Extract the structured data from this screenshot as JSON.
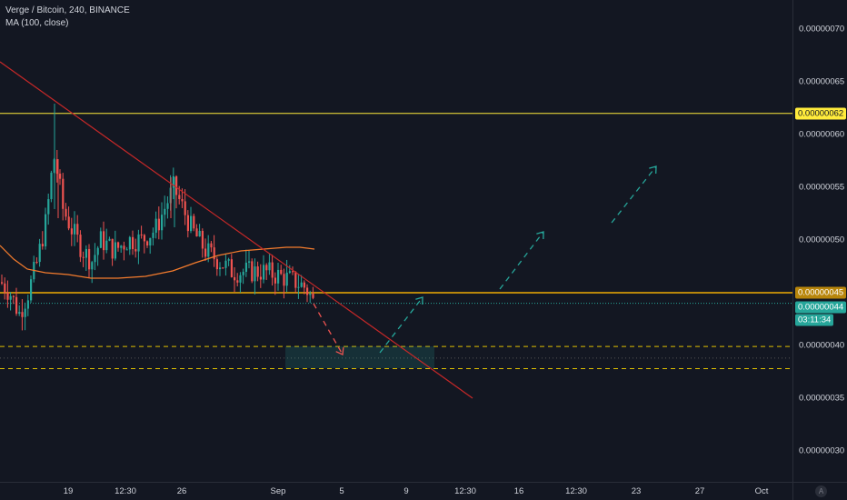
{
  "legend": {
    "symbol": "Verge / Bitcoin, 240, BINANCE",
    "indicator": "MA (100, close)"
  },
  "colors": {
    "background": "#131722",
    "up_candle": "#26a69a",
    "down_candle": "#ef5350",
    "ma_line": "#f57c2d",
    "trendline": "#c62828",
    "resistance_line": "#ffeb3b",
    "support_line": "#e0c000",
    "orange_level": "#b8860b",
    "current_price": "#26a69a",
    "projection_up": "#26a69a",
    "projection_down": "#ef5350"
  },
  "price_axis": {
    "ticks": [
      "0.00000070",
      "0.00000065",
      "0.00000060",
      "0.00000055",
      "0.00000050",
      "0.00000040",
      "0.00000035",
      "0.00000030"
    ],
    "tick_values": [
      70,
      65,
      60,
      55,
      50,
      40,
      35,
      30
    ],
    "badges": [
      {
        "text": "0.00000062",
        "value": 62.0,
        "bg": "#ffeb3b",
        "fg": "#131722"
      },
      {
        "text": "0.00000045",
        "value": 45.0,
        "bg": "#b8860b",
        "fg": "#ffffff"
      },
      {
        "text": "0.00000044",
        "value": 44.0,
        "bg": "#26a69a",
        "fg": "#ffffff"
      },
      {
        "text": "03:11:34",
        "value": 42.3,
        "bg": "#26a69a",
        "fg": "#ffffff"
      }
    ],
    "scale_button": "A"
  },
  "time_axis": {
    "labels": [
      "19",
      "12:30",
      "26",
      "Sep",
      "5",
      "9",
      "12:30",
      "16",
      "12:30",
      "23",
      "27",
      "Oct"
    ]
  },
  "levels": {
    "resistance": 62.0,
    "orange_level": 45.0,
    "current_price": 44.0,
    "support_upper": 39.9,
    "support_lower": 37.8,
    "dotted_mid": 38.8
  }
}
